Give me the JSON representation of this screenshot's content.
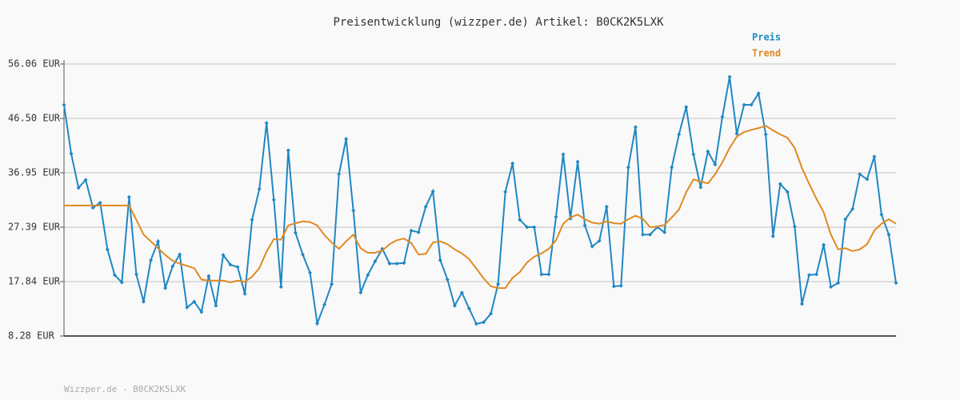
{
  "chart_data": {
    "type": "line",
    "title": "Preisentwicklung (wizzper.de) Artikel: B0CK2K5LXK",
    "footer": "Wizzper.de - B0CK2K5LXK",
    "ylim": [
      8.28,
      56.06
    ],
    "yticks": [
      {
        "value": 8.28,
        "label": "8.28 EUR"
      },
      {
        "value": 17.84,
        "label": "17.84 EUR"
      },
      {
        "value": 27.39,
        "label": "27.39 EUR"
      },
      {
        "value": 36.95,
        "label": "36.95 EUR"
      },
      {
        "value": 46.5,
        "label": "46.50 EUR"
      },
      {
        "value": 56.06,
        "label": "56.06 EUR"
      }
    ],
    "grid": true,
    "series": [
      {
        "name": "Preis",
        "color": "#1f87c4",
        "markers": true,
        "values": [
          48.9,
          40.3,
          34.3,
          35.7,
          30.8,
          31.7,
          23.5,
          19.0,
          17.7,
          32.7,
          19.1,
          14.3,
          21.6,
          24.9,
          16.7,
          20.5,
          22.6,
          13.3,
          14.3,
          12.5,
          18.8,
          13.6,
          22.5,
          20.8,
          20.4,
          15.7,
          28.7,
          34.1,
          45.7,
          32.2,
          16.9,
          40.9,
          26.4,
          22.6,
          19.4,
          10.5,
          13.8,
          17.4,
          36.7,
          42.9,
          30.3,
          15.9,
          19.0,
          21.4,
          23.6,
          21.0,
          21.0,
          21.1,
          26.8,
          26.5,
          31.0,
          33.7,
          21.6,
          18.2,
          13.6,
          15.9,
          13.1,
          10.4,
          10.7,
          12.2,
          17.4,
          33.6,
          38.6,
          28.7,
          27.4,
          27.4,
          19.1,
          19.1,
          29.2,
          40.2,
          28.9,
          38.9,
          27.7,
          24.0,
          25.0,
          31.0,
          17.0,
          17.1,
          37.9,
          45.0,
          26.1,
          26.1,
          27.4,
          26.5,
          37.9,
          43.7,
          48.5,
          40.2,
          34.4,
          40.7,
          38.4,
          46.8,
          53.8,
          43.8,
          48.9,
          48.9,
          50.9,
          43.7,
          25.8,
          35.0,
          33.6,
          27.5,
          13.9,
          19.0,
          19.1,
          24.3,
          16.9,
          17.6,
          28.8,
          30.6,
          36.7,
          35.8,
          39.8,
          29.6,
          26.1,
          17.6
        ]
      },
      {
        "name": "Trend",
        "color": "#e08a22",
        "markers": false,
        "values": [
          31.2,
          31.2,
          31.2,
          31.2,
          31.2,
          31.2,
          31.2,
          31.2,
          31.2,
          31.2,
          28.7,
          26.1,
          24.9,
          23.7,
          22.5,
          21.5,
          21.0,
          20.6,
          20.2,
          18.2,
          18.0,
          18.0,
          18.0,
          17.7,
          18.0,
          17.8,
          18.7,
          20.2,
          23.1,
          25.3,
          25.2,
          27.7,
          28.1,
          28.4,
          28.3,
          27.7,
          26.0,
          24.7,
          23.6,
          24.9,
          26.1,
          23.7,
          22.9,
          22.9,
          23.3,
          24.4,
          25.1,
          25.4,
          24.6,
          22.6,
          22.7,
          24.7,
          24.9,
          24.4,
          23.5,
          22.8,
          21.8,
          20.1,
          18.4,
          17.0,
          16.7,
          16.7,
          18.5,
          19.5,
          21.2,
          22.2,
          22.8,
          23.6,
          25.1,
          28.0,
          29.1,
          29.6,
          28.8,
          28.2,
          28.0,
          28.4,
          28.1,
          28.0,
          28.8,
          29.4,
          28.9,
          27.4,
          27.5,
          27.8,
          29.1,
          30.5,
          33.5,
          35.8,
          35.4,
          35.1,
          36.7,
          38.8,
          41.3,
          43.3,
          44.1,
          44.5,
          44.8,
          45.2,
          44.4,
          43.7,
          43.1,
          41.3,
          37.8,
          35.0,
          32.4,
          30.0,
          26.1,
          23.5,
          23.7,
          23.2,
          23.5,
          24.4,
          26.8,
          28.0,
          28.8,
          28.0
        ]
      }
    ]
  }
}
